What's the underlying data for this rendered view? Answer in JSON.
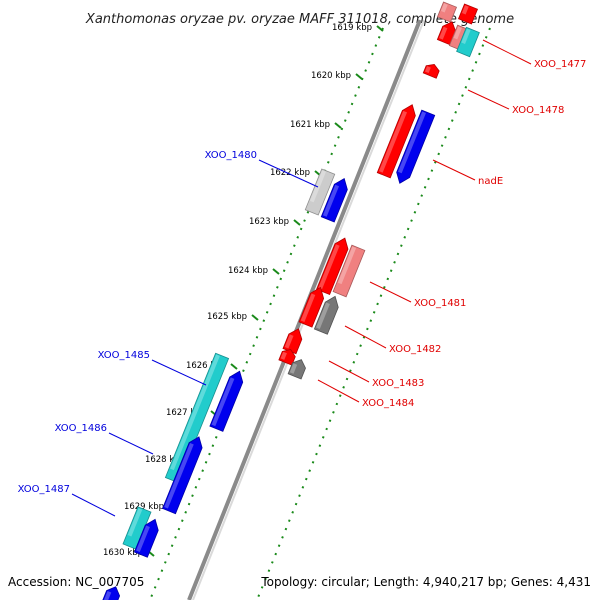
{
  "title": "Xanthomonas oryzae pv. oryzae MAFF 311018, complete genome",
  "footer": {
    "accession": "Accession: NC_007705",
    "stats": "Topology: circular; Length: 4,940,217 bp; Genes: 4,431"
  },
  "ticks": [
    "1619 kbp",
    "1620 kbp",
    "1621 kbp",
    "1622 kbp",
    "1623 kbp",
    "1624 kbp",
    "1625 kbp",
    "1626 kbp",
    "1627 kbp",
    "1628 kbp",
    "1629 kbp",
    "1630 kbp"
  ],
  "gene_labels": {
    "xoo_1477": "XOO_1477",
    "xoo_1478": "XOO_1478",
    "nade": "nadE",
    "xoo_1480": "XOO_1480",
    "xoo_1481": "XOO_1481",
    "xoo_1482": "XOO_1482",
    "xoo_1483": "XOO_1483",
    "xoo_1484": "XOO_1484",
    "xoo_1485": "XOO_1485",
    "xoo_1486": "XOO_1486",
    "xoo_1487": "XOO_1487"
  },
  "colors": {
    "red": "#ff0000",
    "blue": "#0000ee",
    "cyan": "#22cccc",
    "grey": "#777777",
    "light_grey": "#cccccc",
    "pink": "#f08080",
    "label_red": "#e00000",
    "label_blue": "#0000dd",
    "tick_green": "#1a8a1a"
  }
}
